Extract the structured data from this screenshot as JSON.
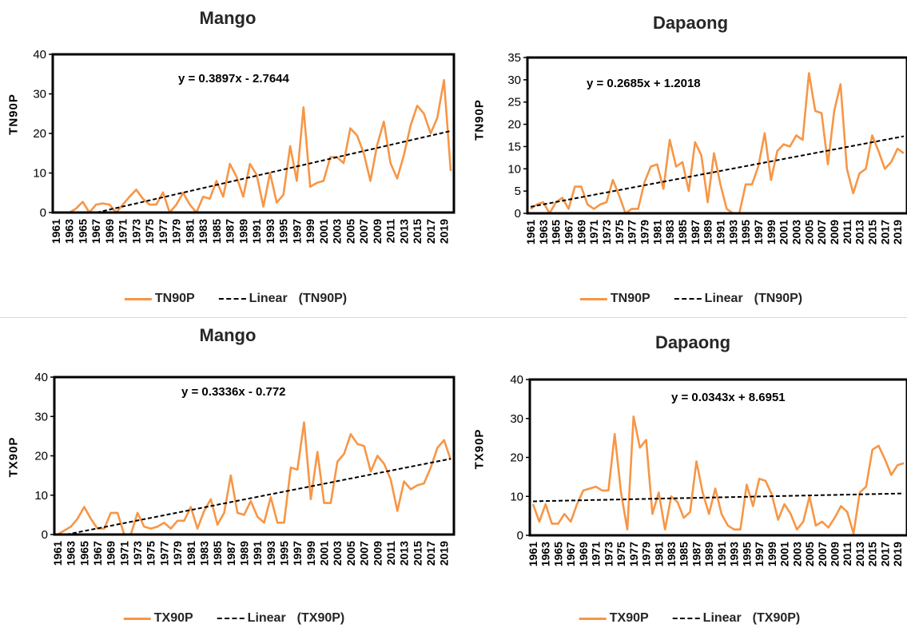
{
  "colors": {
    "series": "#f79646",
    "trend": "#000000",
    "axis": "#000000"
  },
  "chart_data": [
    {
      "type": "line",
      "title": "Mango",
      "ylabel": "TN90P",
      "ylim": [
        0,
        40
      ],
      "yticks": [
        0,
        10,
        20,
        30,
        40
      ],
      "x_tick_labels": [
        "1961",
        "1963",
        "1965",
        "1967",
        "1969",
        "1971",
        "1973",
        "1975",
        "1977",
        "1979",
        "1981",
        "1983",
        "1985",
        "1987",
        "1989",
        "1991",
        "1993",
        "1995",
        "1997",
        "1999",
        "2001",
        "2003",
        "2005",
        "2007",
        "2009",
        "2011",
        "2013",
        "2015",
        "2017",
        "2019"
      ],
      "x": [
        1961,
        1962,
        1963,
        1964,
        1965,
        1966,
        1967,
        1968,
        1969,
        1970,
        1971,
        1972,
        1973,
        1974,
        1975,
        1976,
        1977,
        1978,
        1979,
        1980,
        1981,
        1982,
        1983,
        1984,
        1985,
        1986,
        1987,
        1988,
        1989,
        1990,
        1991,
        1992,
        1993,
        1994,
        1995,
        1996,
        1997,
        1998,
        1999,
        2000,
        2001,
        2002,
        2003,
        2004,
        2005,
        2006,
        2007,
        2008,
        2009,
        2010,
        2011,
        2012,
        2013,
        2014,
        2015,
        2016,
        2017,
        2018,
        2019,
        2020
      ],
      "series": [
        {
          "name": "TN90P",
          "values": [
            0,
            0,
            0,
            1,
            2.7,
            0,
            2,
            2.3,
            2,
            0,
            2,
            4,
            5.8,
            3.5,
            2,
            2,
            5.1,
            0,
            2,
            5,
            2,
            0,
            4,
            3.5,
            8,
            4,
            12.3,
            9,
            4,
            12.3,
            9.5,
            1.5,
            10,
            2.5,
            4.5,
            16.8,
            8,
            26.6,
            6.5,
            7.5,
            8,
            14,
            14,
            12.5,
            21.3,
            19.5,
            15,
            8,
            17,
            23,
            12.5,
            8.6,
            14.5,
            22,
            27,
            25,
            20,
            24,
            33.5,
            10.5
          ]
        }
      ],
      "trend": {
        "equation": "y = 0.3897x - 2.7644",
        "slope": 0.3897,
        "intercept": -2.7644
      },
      "legend": {
        "series_label": "TN90P",
        "trend_label": "Linear",
        "trend_series": "(TN90P)"
      }
    },
    {
      "type": "line",
      "title": "Dapaong",
      "ylabel": "TN90P",
      "ylim": [
        0,
        35
      ],
      "yticks": [
        0,
        5,
        10,
        15,
        20,
        25,
        30,
        35
      ],
      "x_tick_labels": [
        "1961",
        "1963",
        "1965",
        "1967",
        "1969",
        "1971",
        "1973",
        "1975",
        "1977",
        "1979",
        "1981",
        "1983",
        "1985",
        "1987",
        "1989",
        "1991",
        "1993",
        "1995",
        "1997",
        "1999",
        "2001",
        "2003",
        "2005",
        "2007",
        "2009",
        "2011",
        "2013",
        "2015",
        "2017",
        "2019"
      ],
      "x": [
        1961,
        1962,
        1963,
        1964,
        1965,
        1966,
        1967,
        1968,
        1969,
        1970,
        1971,
        1972,
        1973,
        1974,
        1975,
        1976,
        1977,
        1978,
        1979,
        1980,
        1981,
        1982,
        1983,
        1984,
        1985,
        1986,
        1987,
        1988,
        1989,
        1990,
        1991,
        1992,
        1993,
        1994,
        1995,
        1996,
        1997,
        1998,
        1999,
        2000,
        2001,
        2002,
        2003,
        2004,
        2005,
        2006,
        2007,
        2008,
        2009,
        2010,
        2011,
        2012,
        2013,
        2014,
        2015,
        2016,
        2017,
        2018,
        2019,
        2020
      ],
      "series": [
        {
          "name": "TN90P",
          "values": [
            1,
            2,
            2.5,
            0,
            2.5,
            3.5,
            1,
            6,
            6,
            2,
            1,
            2,
            2.5,
            7.5,
            4,
            0,
            1,
            1,
            7,
            10.5,
            11,
            5.5,
            16.5,
            10.5,
            11.5,
            5,
            16,
            13,
            2.5,
            13.5,
            6.5,
            1,
            0,
            0,
            6.5,
            6.5,
            10.5,
            18,
            7.5,
            14,
            15.5,
            15,
            17.5,
            16.5,
            31.5,
            23,
            22.5,
            11,
            23,
            29,
            10,
            4.5,
            9,
            10,
            17.5,
            14,
            10,
            11.5,
            14.5,
            13.5
          ]
        }
      ],
      "trend": {
        "equation": "y = 0.2685x + 1.2018",
        "slope": 0.2685,
        "intercept": 1.2018
      },
      "legend": {
        "series_label": "TN90P",
        "trend_label": "Linear",
        "trend_series": "(TN90P)"
      }
    },
    {
      "type": "line",
      "title": "Mango",
      "ylabel": "TX90P",
      "ylim": [
        0,
        40
      ],
      "yticks": [
        0,
        10,
        20,
        30,
        40
      ],
      "x_tick_labels": [
        "1961",
        "1963",
        "1965",
        "1967",
        "1969",
        "1971",
        "1973",
        "1975",
        "1977",
        "1979",
        "1981",
        "1983",
        "1985",
        "1987",
        "1989",
        "1991",
        "1993",
        "1995",
        "1997",
        "1999",
        "2001",
        "2003",
        "2005",
        "2007",
        "2009",
        "2011",
        "2013",
        "2015",
        "2017",
        "2019"
      ],
      "x": [
        1961,
        1962,
        1963,
        1964,
        1965,
        1966,
        1967,
        1968,
        1969,
        1970,
        1971,
        1972,
        1973,
        1974,
        1975,
        1976,
        1977,
        1978,
        1979,
        1980,
        1981,
        1982,
        1983,
        1984,
        1985,
        1986,
        1987,
        1988,
        1989,
        1990,
        1991,
        1992,
        1993,
        1994,
        1995,
        1996,
        1997,
        1998,
        1999,
        2000,
        2001,
        2002,
        2003,
        2004,
        2005,
        2006,
        2007,
        2008,
        2009,
        2010,
        2011,
        2012,
        2013,
        2014,
        2015,
        2016,
        2017,
        2018,
        2019,
        2020
      ],
      "series": [
        {
          "name": "TX90P",
          "values": [
            0,
            1,
            2,
            4,
            7,
            4,
            1.5,
            1.5,
            5.5,
            5.5,
            0,
            0,
            5.5,
            2,
            1.5,
            2,
            3,
            1.5,
            3.5,
            3.5,
            7,
            1.5,
            6,
            9,
            2.5,
            5.5,
            15,
            5.5,
            5,
            8.5,
            4.5,
            3,
            9.5,
            3,
            3,
            17,
            16.5,
            28.5,
            9,
            21,
            8,
            8,
            18.5,
            20.5,
            25.5,
            23,
            22.5,
            16,
            20,
            18,
            14,
            6,
            13.5,
            11.5,
            12.5,
            13,
            17,
            22,
            24,
            19
          ]
        }
      ],
      "trend": {
        "equation": "y = 0.3336x - 0.772",
        "slope": 0.3336,
        "intercept": -0.772
      },
      "legend": {
        "series_label": "TX90P",
        "trend_label": "Linear",
        "trend_series": "(TX90P)"
      }
    },
    {
      "type": "line",
      "title": "Dapaong",
      "ylabel": "TX90P",
      "ylim": [
        0,
        40
      ],
      "yticks": [
        0,
        10,
        20,
        30,
        40
      ],
      "x_tick_labels": [
        "1961",
        "1963",
        "1965",
        "1967",
        "1969",
        "1971",
        "1973",
        "1975",
        "1977",
        "1979",
        "1981",
        "1983",
        "1985",
        "1987",
        "1989",
        "1991",
        "1993",
        "1995",
        "1997",
        "1999",
        "2001",
        "2003",
        "2005",
        "2007",
        "2009",
        "2011",
        "2013",
        "2015",
        "2017",
        "2019"
      ],
      "x": [
        1961,
        1962,
        1963,
        1964,
        1965,
        1966,
        1967,
        1968,
        1969,
        1970,
        1971,
        1972,
        1973,
        1974,
        1975,
        1976,
        1977,
        1978,
        1979,
        1980,
        1981,
        1982,
        1983,
        1984,
        1985,
        1986,
        1987,
        1988,
        1989,
        1990,
        1991,
        1992,
        1993,
        1994,
        1995,
        1996,
        1997,
        1998,
        1999,
        2000,
        2001,
        2002,
        2003,
        2004,
        2005,
        2006,
        2007,
        2008,
        2009,
        2010,
        2011,
        2012,
        2013,
        2014,
        2015,
        2016,
        2017,
        2018,
        2019,
        2020
      ],
      "series": [
        {
          "name": "TX90P",
          "values": [
            8,
            3.5,
            8,
            3,
            3,
            5.5,
            3.5,
            8,
            11.5,
            12,
            12.5,
            11.5,
            11.5,
            26,
            11,
            1.5,
            30.5,
            22.5,
            24.5,
            5.5,
            11,
            1.5,
            10,
            8.5,
            4.5,
            6,
            19,
            11,
            5.5,
            12,
            5.5,
            2.5,
            1.5,
            1.5,
            13,
            7.5,
            14.5,
            14,
            10.5,
            4,
            8,
            5.5,
            1.5,
            3.5,
            10,
            2.5,
            3.5,
            2,
            4.5,
            7.5,
            6,
            0.5,
            11,
            12.5,
            22,
            23,
            19.5,
            15.5,
            18,
            18.5
          ]
        }
      ],
      "trend": {
        "equation": "y = 0.0343x + 8.6951",
        "slope": 0.0343,
        "intercept": 8.6951
      },
      "legend": {
        "series_label": "TX90P",
        "trend_label": "Linear",
        "trend_series": "(TX90P)"
      }
    }
  ]
}
